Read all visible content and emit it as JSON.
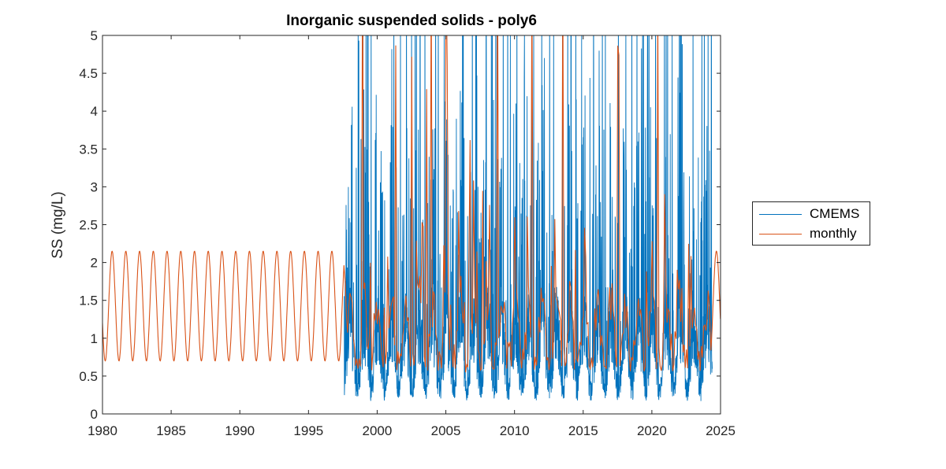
{
  "chart_data": {
    "type": "line",
    "title": "Inorganic suspended solids - poly6",
    "xlabel": "",
    "ylabel": "SS (mg/L)",
    "xlim": [
      1980,
      2025
    ],
    "ylim": [
      0,
      5
    ],
    "x_ticks": [
      "1980",
      "1985",
      "1990",
      "1995",
      "2000",
      "2005",
      "2010",
      "2015",
      "2020",
      "2025"
    ],
    "y_ticks": [
      "0",
      "0.5",
      "1",
      "1.5",
      "2",
      "2.5",
      "3",
      "3.5",
      "4",
      "4.5",
      "5"
    ],
    "grid": false,
    "legend_position": "outside-right",
    "series": [
      {
        "name": "CMEMS",
        "color": "#0072BD",
        "x_range": [
          1997.6,
          2024.4
        ],
        "approx_min": 0.1,
        "approx_baseline": [
          0.4,
          1.5
        ],
        "frequent_peaks_above": 5
      },
      {
        "name": "monthly",
        "color": "#D95319",
        "x_range": [
          1980,
          2025
        ],
        "climatology_period": [
          1980,
          1997.6
        ],
        "climatology_min": 0.7,
        "climatology_max": 2.15,
        "annual_cycle": true
      }
    ]
  }
}
